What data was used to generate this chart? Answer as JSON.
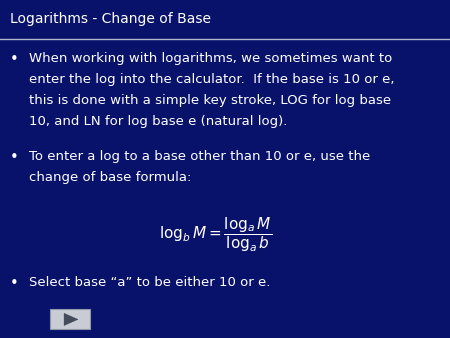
{
  "title": "Logarithms - Change of Base",
  "bg_color": "#09126b",
  "title_bg_color": "#09126b",
  "title_color": "#ffffff",
  "text_color": "#ffffff",
  "separator_color": "#b0b8cc",
  "bullet1_lines": [
    "When working with logarithms, we sometimes want to",
    "enter the log into the calculator.  If the base is 10 or e,",
    "this is done with a simple key stroke, LOG for log base",
    "10, and LN for log base e (natural log)."
  ],
  "bullet2_lines": [
    "To enter a log to a base other than 10 or e, use the",
    "change of base formula:"
  ],
  "bullet3": "Select base “a” to be either 10 or e.",
  "font_size_title": 10,
  "font_size_body": 9.5,
  "font_size_formula": 11
}
